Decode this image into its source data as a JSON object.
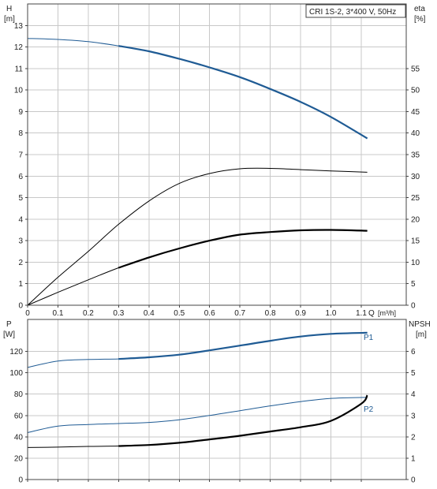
{
  "legend_text": "CRI 1S-2, 3*400 V, 50Hz",
  "colors": {
    "blue": "#1f5b94",
    "black": "#000000",
    "grid": "#c8c8c8"
  },
  "chart_data": [
    {
      "type": "line",
      "title": "",
      "xlabel": "Q [m³/h]",
      "x_label_prefix": "Q",
      "x_label_unit": "[m³/h]",
      "xlim": [
        0,
        1.2
      ],
      "x_ticks": [
        "0",
        "0.1",
        "0.2",
        "0.3",
        "0.4",
        "0.5",
        "0.6",
        "0.7",
        "0.8",
        "0.9",
        "1.0",
        "1.1"
      ],
      "x_tick_values": [
        0,
        0.1,
        0.2,
        0.3,
        0.4,
        0.5,
        0.6,
        0.7,
        0.8,
        0.9,
        1.0,
        1.1
      ],
      "y_left": {
        "label": "H",
        "unit": "[m]",
        "lim": [
          0,
          14
        ],
        "ticks": [
          0,
          1,
          2,
          3,
          4,
          5,
          6,
          7,
          8,
          9,
          10,
          11,
          12,
          13
        ]
      },
      "y_right": {
        "label": "eta",
        "unit": "[%]",
        "lim": [
          0,
          70
        ],
        "ticks": [
          0,
          5,
          10,
          15,
          20,
          25,
          30,
          35,
          40,
          45,
          50,
          55
        ]
      },
      "grid": true,
      "series": [
        {
          "axis": "left",
          "color": "#1f5b94",
          "thick_from": 0.3,
          "x": [
            0,
            0.1,
            0.2,
            0.3,
            0.4,
            0.5,
            0.6,
            0.7,
            0.8,
            0.9,
            1.0,
            1.12
          ],
          "values": [
            12.4,
            12.35,
            12.25,
            12.05,
            11.8,
            11.45,
            11.05,
            10.6,
            10.05,
            9.45,
            8.75,
            7.75
          ]
        },
        {
          "axis": "right",
          "color": "#000000",
          "thick_from": null,
          "x": [
            0,
            0.1,
            0.2,
            0.3,
            0.4,
            0.5,
            0.6,
            0.7,
            0.8,
            0.9,
            1.0,
            1.12
          ],
          "values": [
            0,
            6.5,
            12.5,
            18.8,
            24.2,
            28.3,
            30.6,
            31.7,
            31.8,
            31.5,
            31.2,
            30.9
          ]
        },
        {
          "axis": "right",
          "color": "#000000",
          "thick_from": 0.3,
          "x": [
            0,
            0.1,
            0.2,
            0.3,
            0.4,
            0.5,
            0.6,
            0.7,
            0.8,
            0.9,
            1.0,
            1.12
          ],
          "values": [
            0,
            3.0,
            5.9,
            8.7,
            11.1,
            13.2,
            15.0,
            16.4,
            17.0,
            17.4,
            17.5,
            17.3
          ]
        }
      ]
    },
    {
      "type": "line",
      "title": "",
      "xlim": [
        0,
        1.2
      ],
      "y_left": {
        "label": "P",
        "unit": "[W]",
        "lim": [
          0,
          150
        ],
        "ticks": [
          0,
          20,
          40,
          60,
          80,
          100,
          120
        ]
      },
      "y_right": {
        "label": "NPSH",
        "unit": "[m]",
        "lim": [
          0,
          7.5
        ],
        "ticks": [
          0,
          1,
          2,
          3,
          4,
          5,
          6
        ]
      },
      "grid": true,
      "series": [
        {
          "name": "P1",
          "axis": "left",
          "color": "#1f5b94",
          "thick_from": 0.3,
          "x": [
            0,
            0.1,
            0.2,
            0.3,
            0.4,
            0.5,
            0.6,
            0.7,
            0.8,
            0.9,
            1.0,
            1.12
          ],
          "values": [
            105,
            111,
            112.5,
            113,
            114.5,
            117,
            121,
            125.5,
            130,
            134,
            136.5,
            137.5
          ]
        },
        {
          "name": "P2",
          "axis": "left",
          "color": "#1f5b94",
          "thick_from": null,
          "x": [
            0,
            0.1,
            0.2,
            0.3,
            0.4,
            0.5,
            0.6,
            0.7,
            0.8,
            0.9,
            1.0,
            1.12
          ],
          "values": [
            44,
            50,
            51.5,
            52.5,
            53.5,
            56,
            60,
            64.5,
            69,
            73,
            76,
            77
          ]
        },
        {
          "axis": "right",
          "color": "#000000",
          "thick_from": 0.3,
          "x": [
            0,
            0.1,
            0.2,
            0.3,
            0.4,
            0.5,
            0.6,
            0.7,
            0.8,
            0.9,
            1.0,
            1.1,
            1.12
          ],
          "values": [
            1.5,
            1.52,
            1.55,
            1.57,
            1.62,
            1.72,
            1.88,
            2.05,
            2.25,
            2.45,
            2.75,
            3.55,
            3.95
          ]
        }
      ]
    }
  ]
}
